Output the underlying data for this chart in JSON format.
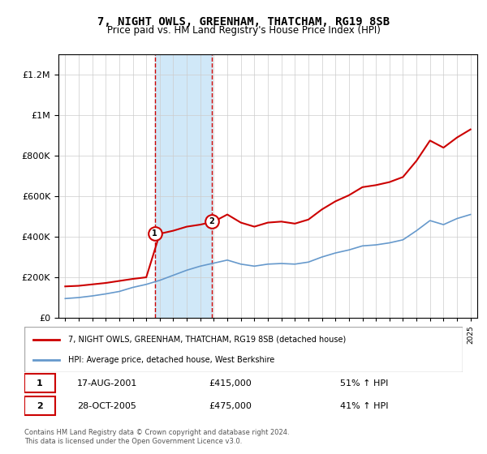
{
  "title": "7, NIGHT OWLS, GREENHAM, THATCHAM, RG19 8SB",
  "subtitle": "Price paid vs. HM Land Registry's House Price Index (HPI)",
  "legend_line1": "7, NIGHT OWLS, GREENHAM, THATCHAM, RG19 8SB (detached house)",
  "legend_line2": "HPI: Average price, detached house, West Berkshire",
  "purchase1_label": "1",
  "purchase1_date": "17-AUG-2001",
  "purchase1_price": 415000,
  "purchase1_pct": "51% ↑ HPI",
  "purchase2_label": "2",
  "purchase2_date": "28-OCT-2005",
  "purchase2_price": 475000,
  "purchase2_pct": "41% ↑ HPI",
  "footnote": "Contains HM Land Registry data © Crown copyright and database right 2024.\nThis data is licensed under the Open Government Licence v3.0.",
  "red_color": "#cc0000",
  "blue_color": "#6699cc",
  "shade_color": "#d0e8f8",
  "marker_border_color": "#cc0000",
  "purchase1_year": 2001.625,
  "purchase2_year": 2005.825,
  "hpi_years": [
    1995,
    1996,
    1997,
    1998,
    1999,
    2000,
    2001,
    2002,
    2003,
    2004,
    2005,
    2006,
    2007,
    2008,
    2009,
    2010,
    2011,
    2012,
    2013,
    2014,
    2015,
    2016,
    2017,
    2018,
    2019,
    2020,
    2021,
    2022,
    2023,
    2024,
    2025
  ],
  "hpi_values": [
    95000,
    100000,
    108000,
    118000,
    130000,
    150000,
    165000,
    185000,
    210000,
    235000,
    255000,
    270000,
    285000,
    265000,
    255000,
    265000,
    268000,
    265000,
    275000,
    300000,
    320000,
    335000,
    355000,
    360000,
    370000,
    385000,
    430000,
    480000,
    460000,
    490000,
    510000
  ],
  "prop_years": [
    1995,
    1996,
    1997,
    1998,
    1999,
    2000,
    2001,
    2002,
    2003,
    2004,
    2005,
    2006,
    2007,
    2008,
    2009,
    2010,
    2011,
    2012,
    2013,
    2014,
    2015,
    2016,
    2017,
    2018,
    2019,
    2020,
    2021,
    2022,
    2023,
    2024,
    2025
  ],
  "prop_values": [
    155000,
    158000,
    165000,
    172000,
    182000,
    192000,
    200000,
    415000,
    430000,
    450000,
    460000,
    475000,
    510000,
    470000,
    450000,
    470000,
    475000,
    465000,
    485000,
    535000,
    575000,
    605000,
    645000,
    655000,
    670000,
    695000,
    775000,
    875000,
    840000,
    890000,
    930000
  ],
  "ylim": [
    0,
    1300000
  ],
  "xlim": [
    1994.5,
    2025.5
  ],
  "background_color": "#f8f8f8"
}
